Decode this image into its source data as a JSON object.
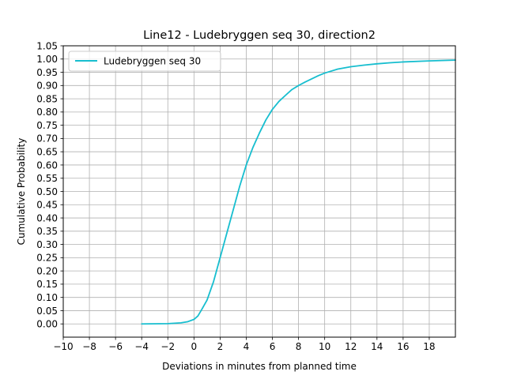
{
  "chart_data": {
    "type": "line",
    "title": "Line12 - Ludebryggen seq 30, direction2",
    "xlabel": "Deviations in minutes from planned time",
    "ylabel": "Cumulative Probability",
    "xlim": [
      -10,
      20
    ],
    "ylim": [
      -0.05,
      1.05
    ],
    "xticks": [
      "−10",
      "−8",
      "−6",
      "−4",
      "−2",
      "0",
      "2",
      "4",
      "6",
      "8",
      "10",
      "12",
      "14",
      "16",
      "18"
    ],
    "xtick_values": [
      -10,
      -8,
      -6,
      -4,
      -2,
      0,
      2,
      4,
      6,
      8,
      10,
      12,
      14,
      16,
      18
    ],
    "yticks": [
      "0.00",
      "0.05",
      "0.10",
      "0.15",
      "0.20",
      "0.25",
      "0.30",
      "0.35",
      "0.40",
      "0.45",
      "0.50",
      "0.55",
      "0.60",
      "0.65",
      "0.70",
      "0.75",
      "0.80",
      "0.85",
      "0.90",
      "0.95",
      "1.00",
      "1.05"
    ],
    "ytick_values": [
      0.0,
      0.05,
      0.1,
      0.15,
      0.2,
      0.25,
      0.3,
      0.35,
      0.4,
      0.45,
      0.5,
      0.55,
      0.6,
      0.65,
      0.7,
      0.75,
      0.8,
      0.85,
      0.9,
      0.95,
      1.0,
      1.05
    ],
    "grid": true,
    "legend_position": "top-left",
    "series": [
      {
        "name": "Ludebryggen seq 30",
        "color": "#17becf",
        "points": [
          [
            -4,
            0.0
          ],
          [
            -2,
            0.001
          ],
          [
            -1,
            0.004
          ],
          [
            -0.5,
            0.008
          ],
          [
            0,
            0.017
          ],
          [
            0.3,
            0.03
          ],
          [
            0.6,
            0.055
          ],
          [
            1,
            0.09
          ],
          [
            1.5,
            0.16
          ],
          [
            2,
            0.25
          ],
          [
            2.5,
            0.34
          ],
          [
            3,
            0.43
          ],
          [
            3.5,
            0.52
          ],
          [
            4,
            0.6
          ],
          [
            4.5,
            0.665
          ],
          [
            5,
            0.72
          ],
          [
            5.5,
            0.77
          ],
          [
            6,
            0.81
          ],
          [
            6.5,
            0.84
          ],
          [
            7,
            0.863
          ],
          [
            7.5,
            0.885
          ],
          [
            8,
            0.9
          ],
          [
            8.5,
            0.913
          ],
          [
            9,
            0.925
          ],
          [
            9.5,
            0.937
          ],
          [
            10,
            0.947
          ],
          [
            11,
            0.962
          ],
          [
            12,
            0.971
          ],
          [
            13,
            0.977
          ],
          [
            14,
            0.982
          ],
          [
            15,
            0.986
          ],
          [
            16,
            0.989
          ],
          [
            18,
            0.993
          ],
          [
            20,
            0.996
          ]
        ]
      }
    ]
  }
}
